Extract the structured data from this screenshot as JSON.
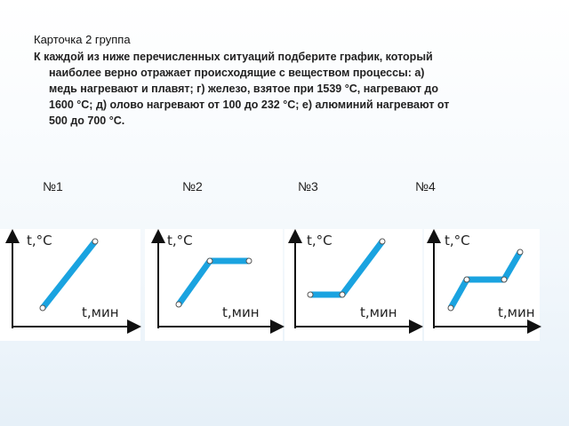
{
  "header": {
    "title": "Карточка 2 группа"
  },
  "task": {
    "lines": [
      "К каждой из ниже перечисленных ситуаций подберите график, который",
      "наиболее верно отражает происходящие с веществом процессы: а)",
      "медь нагревают и плавят; г) железо, взятое при 1539 °С, нагревают до",
      "1600 °С; д) олово нагревают от 100 до 232 °С; е) алюминий нагревают от",
      "500 до 700 °С."
    ]
  },
  "graphs": [
    {
      "label": "№1",
      "y_label": "t,°C",
      "x_label": "t,мин"
    },
    {
      "label": "№2",
      "y_label": "t,°C",
      "x_label": "t,мин"
    },
    {
      "label": "№3",
      "y_label": "t,°C",
      "x_label": "t,мин"
    },
    {
      "label": "№4",
      "y_label": "t,°C",
      "x_label": "t,мин"
    }
  ]
}
